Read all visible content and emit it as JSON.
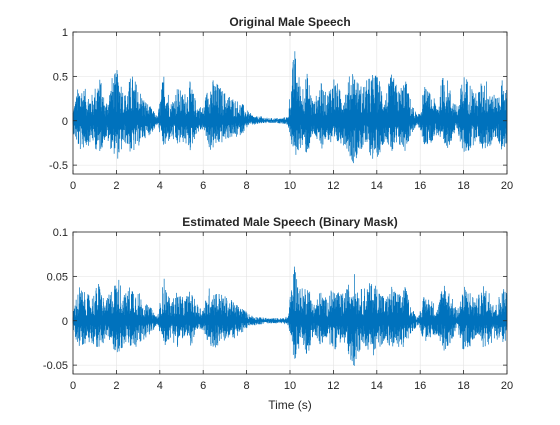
{
  "chart_data": [
    {
      "type": "line",
      "title": "Original Male Speech",
      "xlabel": "",
      "ylabel": "",
      "xlim": [
        0,
        20
      ],
      "ylim": [
        -0.6,
        1
      ],
      "xticks": [
        0,
        2,
        4,
        6,
        8,
        10,
        12,
        14,
        16,
        18,
        20
      ],
      "xtick_labels": [
        "0",
        "2",
        "4",
        "6",
        "8",
        "10",
        "12",
        "14",
        "16",
        "18",
        "20"
      ],
      "yticks": [
        -0.5,
        0,
        0.5,
        1
      ],
      "ytick_labels": [
        "-0.5",
        "0",
        "0.5",
        "1"
      ],
      "grid": true,
      "color": "#0072BD",
      "series": [
        {
          "x": [
            0.0,
            0.3,
            0.6,
            0.9,
            1.2,
            1.5,
            1.8,
            2.1,
            2.4,
            2.7,
            3.0,
            3.3,
            3.6,
            3.9,
            4.2,
            4.5,
            4.8,
            5.1,
            5.4,
            5.7,
            6.0,
            6.3,
            6.6,
            6.9,
            7.2,
            7.5,
            7.8,
            8.1,
            8.4,
            8.7,
            9.0,
            9.3,
            9.6,
            9.9,
            10.2,
            10.5,
            10.8,
            11.1,
            11.4,
            11.7,
            12.0,
            12.3,
            12.6,
            12.9,
            13.2,
            13.5,
            13.8,
            14.1,
            14.4,
            14.7,
            15.0,
            15.3,
            15.6,
            15.9,
            16.2,
            16.5,
            16.8,
            17.1,
            17.4,
            17.7,
            18.0,
            18.3,
            18.6,
            18.9,
            19.2,
            19.5,
            19.8,
            20.0
          ],
          "upper": [
            0.15,
            0.45,
            0.35,
            0.3,
            0.55,
            0.2,
            0.5,
            0.6,
            0.3,
            0.55,
            0.4,
            0.25,
            0.15,
            0.05,
            0.6,
            0.2,
            0.4,
            0.3,
            0.45,
            0.2,
            0.15,
            0.5,
            0.45,
            0.35,
            0.3,
            0.25,
            0.2,
            0.1,
            0.05,
            0.05,
            0.03,
            0.03,
            0.03,
            0.05,
            0.85,
            0.4,
            0.55,
            0.2,
            0.45,
            0.3,
            0.55,
            0.35,
            0.4,
            0.65,
            0.4,
            0.45,
            0.55,
            0.5,
            0.3,
            0.55,
            0.35,
            0.5,
            0.2,
            0.05,
            0.4,
            0.3,
            0.2,
            0.6,
            0.35,
            0.15,
            0.55,
            0.45,
            0.3,
            0.5,
            0.45,
            0.25,
            0.5,
            0.35
          ],
          "lower": [
            -0.15,
            -0.35,
            -0.3,
            -0.25,
            -0.4,
            -0.2,
            -0.35,
            -0.45,
            -0.25,
            -0.4,
            -0.3,
            -0.2,
            -0.15,
            -0.05,
            -0.35,
            -0.2,
            -0.3,
            -0.25,
            -0.35,
            -0.15,
            -0.1,
            -0.35,
            -0.3,
            -0.25,
            -0.2,
            -0.2,
            -0.15,
            -0.05,
            -0.05,
            -0.03,
            -0.03,
            -0.03,
            -0.03,
            -0.05,
            -0.45,
            -0.3,
            -0.4,
            -0.15,
            -0.35,
            -0.2,
            -0.35,
            -0.25,
            -0.3,
            -0.5,
            -0.35,
            -0.3,
            -0.45,
            -0.4,
            -0.2,
            -0.4,
            -0.3,
            -0.35,
            -0.15,
            -0.05,
            -0.3,
            -0.25,
            -0.15,
            -0.4,
            -0.25,
            -0.1,
            -0.4,
            -0.35,
            -0.2,
            -0.35,
            -0.3,
            -0.2,
            -0.35,
            -0.3
          ]
        }
      ]
    },
    {
      "type": "line",
      "title": "Estimated Male Speech (Binary Mask)",
      "xlabel": "Time (s)",
      "ylabel": "",
      "xlim": [
        0,
        20
      ],
      "ylim": [
        -0.06,
        0.1
      ],
      "xticks": [
        0,
        2,
        4,
        6,
        8,
        10,
        12,
        14,
        16,
        18,
        20
      ],
      "xtick_labels": [
        "0",
        "2",
        "4",
        "6",
        "8",
        "10",
        "12",
        "14",
        "16",
        "18",
        "20"
      ],
      "yticks": [
        -0.05,
        0,
        0.05,
        0.1
      ],
      "ytick_labels": [
        "-0.05",
        "0",
        "0.05",
        "0.1"
      ],
      "grid": true,
      "color": "#0072BD",
      "series": [
        {
          "x": [
            0.0,
            0.3,
            0.6,
            0.9,
            1.2,
            1.5,
            1.8,
            2.1,
            2.4,
            2.7,
            3.0,
            3.3,
            3.6,
            3.9,
            4.2,
            4.5,
            4.8,
            5.1,
            5.4,
            5.7,
            6.0,
            6.3,
            6.6,
            6.9,
            7.2,
            7.5,
            7.8,
            8.1,
            8.4,
            8.7,
            9.0,
            9.3,
            9.6,
            9.9,
            10.2,
            10.5,
            10.8,
            11.1,
            11.4,
            11.7,
            12.0,
            12.3,
            12.6,
            12.9,
            13.2,
            13.5,
            13.8,
            14.1,
            14.4,
            14.7,
            15.0,
            15.3,
            15.6,
            15.9,
            16.2,
            16.5,
            16.8,
            17.1,
            17.4,
            17.7,
            18.0,
            18.3,
            18.6,
            18.9,
            19.2,
            19.5,
            19.8,
            20.0
          ],
          "upper": [
            0.015,
            0.04,
            0.03,
            0.03,
            0.045,
            0.02,
            0.04,
            0.05,
            0.03,
            0.045,
            0.035,
            0.02,
            0.015,
            0.005,
            0.05,
            0.02,
            0.035,
            0.025,
            0.035,
            0.02,
            0.015,
            0.04,
            0.035,
            0.03,
            0.025,
            0.02,
            0.015,
            0.008,
            0.005,
            0.004,
            0.003,
            0.003,
            0.003,
            0.005,
            0.07,
            0.035,
            0.045,
            0.02,
            0.035,
            0.025,
            0.04,
            0.03,
            0.035,
            0.06,
            0.035,
            0.04,
            0.045,
            0.04,
            0.025,
            0.04,
            0.03,
            0.04,
            0.015,
            0.004,
            0.03,
            0.025,
            0.015,
            0.05,
            0.03,
            0.012,
            0.04,
            0.035,
            0.025,
            0.04,
            0.035,
            0.02,
            0.04,
            0.035
          ],
          "lower": [
            -0.015,
            -0.03,
            -0.025,
            -0.025,
            -0.035,
            -0.02,
            -0.03,
            -0.04,
            -0.025,
            -0.035,
            -0.03,
            -0.02,
            -0.015,
            -0.005,
            -0.03,
            -0.02,
            -0.03,
            -0.02,
            -0.03,
            -0.015,
            -0.01,
            -0.035,
            -0.03,
            -0.025,
            -0.02,
            -0.02,
            -0.015,
            -0.006,
            -0.005,
            -0.004,
            -0.003,
            -0.003,
            -0.003,
            -0.005,
            -0.045,
            -0.03,
            -0.04,
            -0.015,
            -0.03,
            -0.02,
            -0.035,
            -0.025,
            -0.03,
            -0.055,
            -0.035,
            -0.03,
            -0.04,
            -0.035,
            -0.02,
            -0.035,
            -0.03,
            -0.03,
            -0.015,
            -0.004,
            -0.025,
            -0.02,
            -0.015,
            -0.035,
            -0.025,
            -0.01,
            -0.035,
            -0.03,
            -0.02,
            -0.03,
            -0.03,
            -0.02,
            -0.03,
            -0.03
          ]
        }
      ]
    }
  ]
}
